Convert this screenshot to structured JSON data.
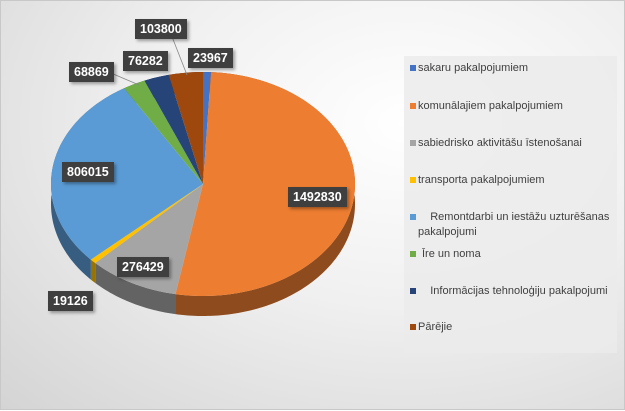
{
  "chart_data": {
    "type": "pie",
    "style": "3d",
    "title": "",
    "legend_position": "right",
    "categories": [
      "sakaru pakalpojumiem",
      "komunālajiem pakalpojumiem",
      "sabiedrisko aktivitāšu īstenošanai",
      "transporta pakalpojumiem",
      "    Remontdarbi un iestāžu uzturēšanas pakalpojumi",
      "Īre un noma",
      "    Informācijas tehnoloģiju pakalpojumi",
      "Pārējie"
    ],
    "values": [
      23967,
      1492830,
      276429,
      19126,
      806015,
      68869,
      76282,
      103800
    ],
    "data_labels": [
      "23967",
      "1492830",
      "276429",
      "19126",
      "806015",
      "68869",
      "76282",
      "103800"
    ],
    "colors": [
      "#4472c4",
      "#ed7d31",
      "#a5a5a5",
      "#ffc000",
      "#5b9bd5",
      "#70ad47",
      "#264478",
      "#9e480e"
    ]
  }
}
